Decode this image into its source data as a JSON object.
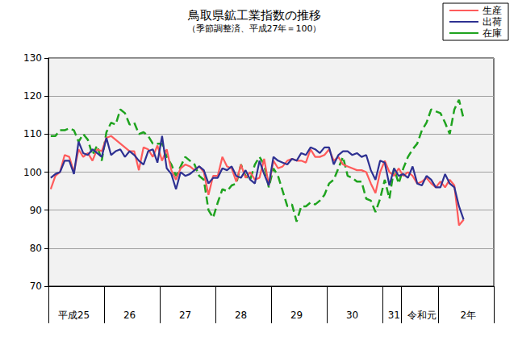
{
  "chart_data": {
    "type": "line",
    "title": "鳥取県鉱工業指数の推移",
    "subtitle": "（季節調整済、平成27年＝100）",
    "categories": [
      null,
      null,
      null,
      null,
      null,
      "平成25",
      null,
      null,
      null,
      null,
      null,
      null,
      null,
      null,
      null,
      null,
      null,
      "26",
      null,
      null,
      null,
      null,
      null,
      null,
      null,
      null,
      null,
      null,
      null,
      "27",
      null,
      null,
      null,
      null,
      null,
      null,
      null,
      null,
      null,
      null,
      null,
      "28",
      null,
      null,
      null,
      null,
      null,
      null,
      null,
      null,
      null,
      null,
      null,
      "29",
      null,
      null,
      null,
      null,
      null,
      null,
      null,
      null,
      null,
      null,
      null,
      "30",
      null,
      null,
      null,
      null,
      null,
      null,
      null,
      null,
      "31",
      null,
      null,
      null,
      null,
      null,
      "令和元",
      null,
      null,
      null,
      null,
      null,
      null,
      null,
      null,
      null,
      "2年",
      null,
      null,
      null,
      null,
      null
    ],
    "series": [
      {
        "name": "生産",
        "color": "#ff5b5b",
        "line_style": "solid",
        "values": [
          95.5,
          99,
          100,
          104.5,
          104,
          100,
          106,
          104,
          105,
          103,
          106,
          105.5,
          109,
          109.5,
          108.5,
          107.5,
          106.5,
          105.5,
          105.5,
          100.5,
          106.5,
          106,
          104,
          107,
          103,
          106,
          100.5,
          98,
          101,
          102,
          101.5,
          100.5,
          101.5,
          100,
          94,
          99,
          99,
          104,
          101.5,
          101,
          97.5,
          102,
          98.5,
          100,
          98,
          98.5,
          103.5,
          96.5,
          103,
          101,
          101.5,
          103,
          103.5,
          103,
          103,
          102.5,
          106,
          104,
          104,
          104.5,
          106,
          103,
          104,
          102,
          101.5,
          101,
          100.5,
          100.5,
          100,
          97,
          94.5,
          100,
          103,
          100,
          99,
          101,
          99,
          100,
          99,
          97,
          97.5,
          98.5,
          97,
          96,
          97.5,
          96,
          98,
          96.5,
          86,
          87.5,
          null,
          null,
          null,
          null,
          null,
          null
        ]
      },
      {
        "name": "出荷",
        "color": "#2e3192",
        "line_style": "solid",
        "values": [
          98.5,
          99.5,
          100,
          103,
          103,
          99.5,
          108,
          105,
          104.5,
          106,
          105,
          104,
          109,
          104.5,
          105.5,
          106,
          104,
          105.5,
          104.5,
          103,
          102,
          105.5,
          106,
          102.5,
          109.5,
          101,
          99.5,
          95.5,
          100,
          99,
          99.5,
          100.5,
          101.5,
          100.5,
          97,
          98.5,
          98.5,
          101,
          100.5,
          101.5,
          99,
          98.5,
          100.5,
          98,
          97,
          103,
          99.5,
          96.5,
          104,
          103,
          102.5,
          102,
          103.5,
          103,
          105,
          104.5,
          106.5,
          106,
          105,
          106.5,
          106.5,
          102,
          104.5,
          105.5,
          105.5,
          104.5,
          105,
          104,
          104.5,
          100.5,
          98,
          103,
          102.5,
          96.5,
          101,
          99,
          99.5,
          98.5,
          101.5,
          97,
          96.5,
          99,
          98,
          96,
          96,
          99.5,
          97,
          96,
          91,
          87.5,
          null,
          null,
          null,
          null,
          null,
          null
        ]
      },
      {
        "name": "在庫",
        "color": "#1fa31f",
        "line_style": "dashed",
        "values": [
          109.5,
          109.5,
          111,
          111,
          111.5,
          111,
          108,
          110,
          108.5,
          104.5,
          107,
          103,
          110.5,
          113,
          112.5,
          116.5,
          115.5,
          112.5,
          113,
          110,
          110.5,
          109.5,
          107.5,
          107.5,
          107.5,
          104,
          102,
          99,
          101.5,
          104,
          103,
          102,
          99,
          98,
          90,
          88,
          92,
          95.5,
          95,
          96.5,
          97,
          102,
          99,
          98,
          102,
          104,
          102,
          96,
          101,
          99,
          95,
          91,
          91.5,
          87,
          91,
          91,
          92,
          91.5,
          92.5,
          94,
          97,
          98,
          101,
          104,
          99,
          98.5,
          97.5,
          97.5,
          93,
          92.5,
          89.5,
          93,
          98,
          93,
          101,
          97,
          101,
          104,
          106,
          107.5,
          111,
          113,
          116.5,
          116,
          115.5,
          113,
          110,
          116.5,
          119,
          114,
          null,
          null,
          null,
          null,
          null,
          null
        ]
      }
    ],
    "ylim": [
      70,
      130
    ],
    "yticks": [
      70,
      80,
      90,
      100,
      110,
      120,
      130
    ],
    "grid": true,
    "legend": "top-right"
  }
}
